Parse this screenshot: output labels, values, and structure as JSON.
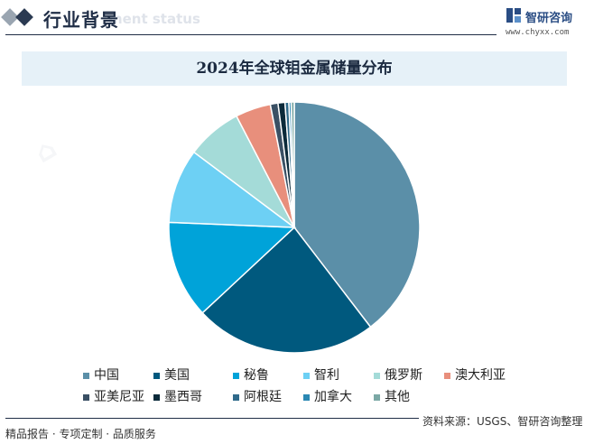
{
  "header": {
    "section_title": "行业背景",
    "section_subtitle": "ment status",
    "logo_name": "智研咨询",
    "logo_url": "www.chyxx.com"
  },
  "chart_data": {
    "type": "pie",
    "title": "2024年全球钼金属储量分布",
    "categories": [
      "中国",
      "美国",
      "秘鲁",
      "智利",
      "俄罗斯",
      "澳大利亚",
      "亚美尼亚",
      "墨西哥",
      "阿根廷",
      "加拿大",
      "其他"
    ],
    "values": [
      40.0,
      23.7,
      12.7,
      9.7,
      7.2,
      4.6,
      1.0,
      0.9,
      0.5,
      0.3,
      0.4
    ],
    "unit": "%",
    "colors": [
      "#5b8fa8",
      "#00597e",
      "#00a3d9",
      "#6dd0f4",
      "#a4dbd8",
      "#e88f7c",
      "#3a5064",
      "#0b2a3a",
      "#2f6a8a",
      "#2b88b3",
      "#7ba8a5"
    ],
    "legend_position": "bottom"
  },
  "footer": {
    "left": "精品报告 · 专项定制 · 品质服务",
    "source": "资料来源：USGS、智研咨询整理"
  }
}
